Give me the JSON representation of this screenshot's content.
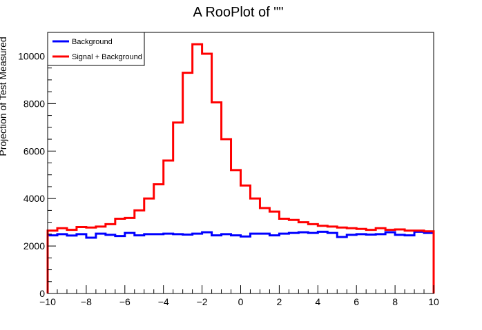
{
  "chart_data": {
    "type": "line",
    "style": "step-histogram",
    "title": "A RooPlot of \"\"",
    "xlabel": "",
    "ylabel": "Projection of Test Measured",
    "xlim": [
      -10,
      10
    ],
    "ylim": [
      0,
      11000
    ],
    "grid": false,
    "legend_position": "top-left",
    "x_ticks": [
      "-10",
      "-8",
      "-6",
      "-4",
      "-2",
      "0",
      "2",
      "4",
      "6",
      "8",
      "10"
    ],
    "y_ticks": [
      "0",
      "2000",
      "4000",
      "6000",
      "8000",
      "10000"
    ],
    "bin_edges": [
      -10,
      -9.5,
      -9,
      -8.5,
      -8,
      -7.5,
      -7,
      -6.5,
      -6,
      -5.5,
      -5,
      -4.5,
      -4,
      -3.5,
      -3,
      -2.5,
      -2,
      -1.5,
      -1,
      -0.5,
      0,
      0.5,
      1,
      1.5,
      2,
      2.5,
      3,
      3.5,
      4,
      4.5,
      5,
      5.5,
      6,
      6.5,
      7,
      7.5,
      8,
      8.5,
      9,
      9.5,
      10
    ],
    "series": [
      {
        "name": "Background",
        "color": "#0000ff",
        "values": [
          2450,
          2500,
          2440,
          2500,
          2350,
          2520,
          2470,
          2420,
          2550,
          2450,
          2500,
          2500,
          2520,
          2500,
          2480,
          2520,
          2580,
          2450,
          2500,
          2450,
          2400,
          2520,
          2520,
          2450,
          2520,
          2550,
          2580,
          2550,
          2600,
          2550,
          2380,
          2470,
          2500,
          2480,
          2500,
          2580,
          2470,
          2450,
          2600,
          2550
        ]
      },
      {
        "name": "Signal + Background",
        "color": "#ff0000",
        "values": [
          2650,
          2750,
          2680,
          2800,
          2780,
          2820,
          2920,
          3150,
          3180,
          3500,
          4000,
          4600,
          5600,
          7200,
          9300,
          10500,
          10100,
          8050,
          6500,
          5200,
          4550,
          4000,
          3600,
          3450,
          3150,
          3100,
          3000,
          2920,
          2850,
          2820,
          2780,
          2750,
          2720,
          2680,
          2750,
          2680,
          2700,
          2650,
          2650,
          2620
        ]
      }
    ]
  }
}
